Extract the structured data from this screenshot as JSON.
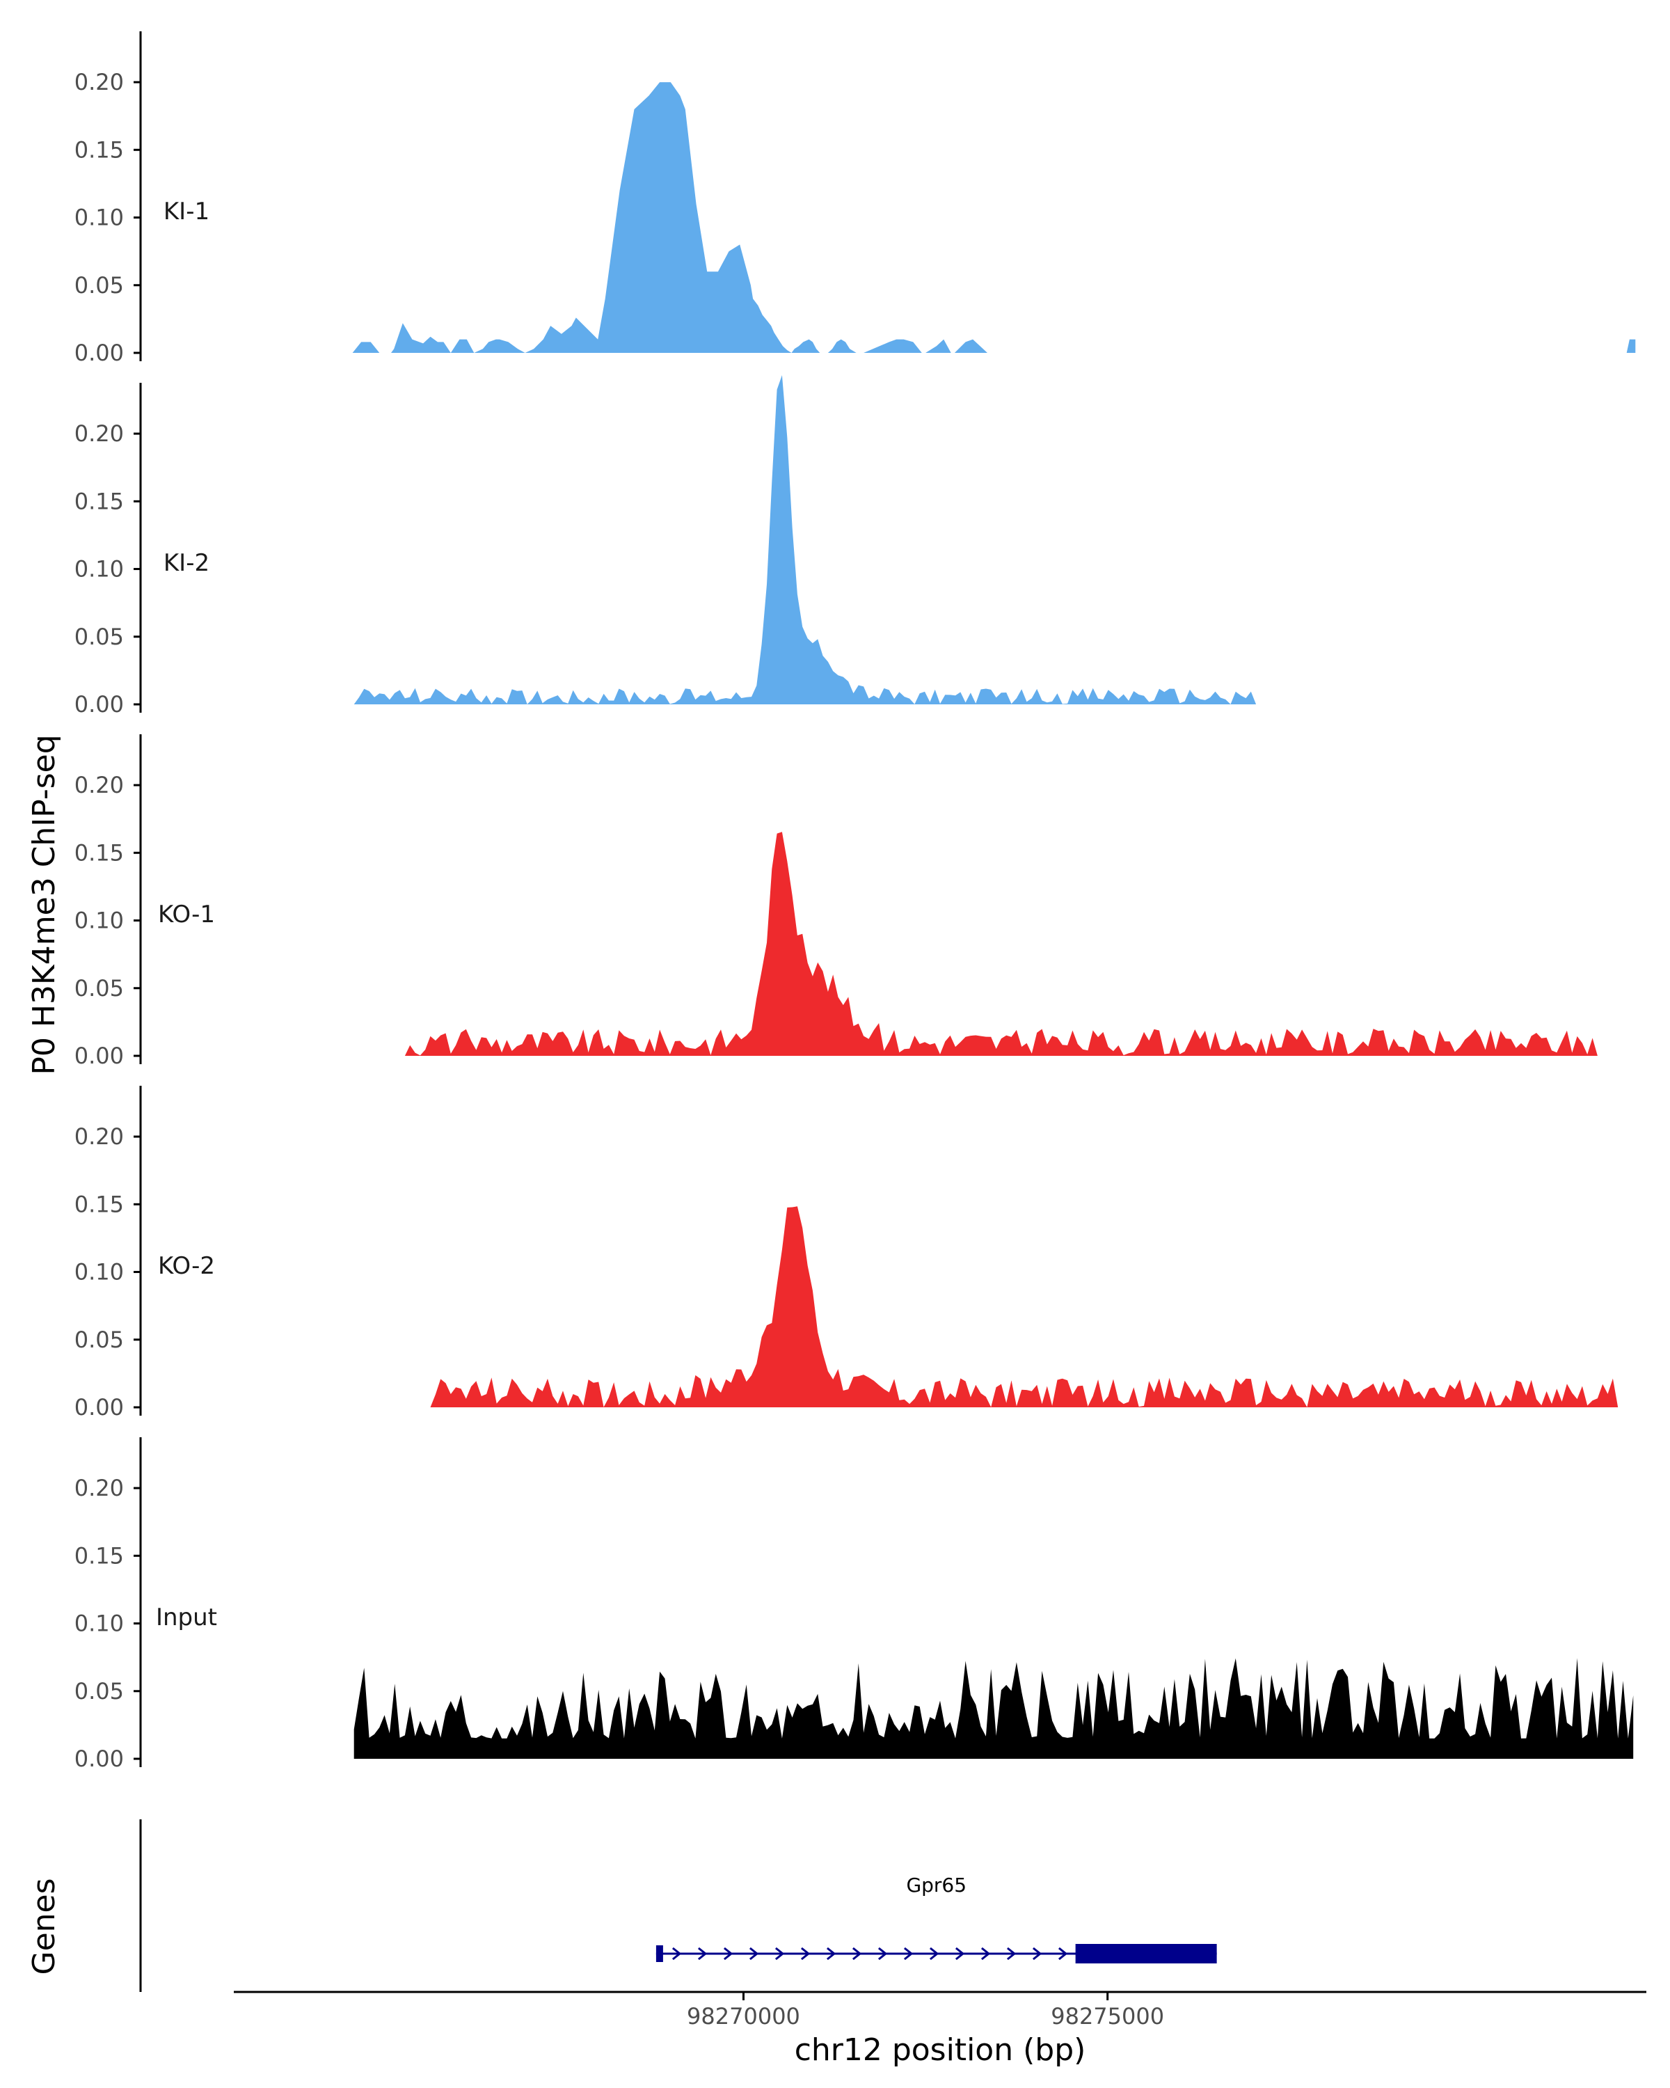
{
  "chart_data": {
    "type": "area",
    "ylabel": "P0 H3K4me3 ChIP-seq",
    "xlabel": "chr12 position (bp)",
    "gene_panel_label": "Genes",
    "xlim": [
      98263000,
      98282400
    ],
    "ylim": [
      0,
      0.235
    ],
    "y_ticks": [
      0.0,
      0.05,
      0.1,
      0.15,
      0.2
    ],
    "y_tick_labels": [
      "0.00",
      "0.05",
      "0.10",
      "0.15",
      "0.20"
    ],
    "x_ticks": [
      98270000,
      98275000
    ],
    "x_tick_labels": [
      "98270000",
      "98275000"
    ],
    "colors": {
      "KI": "#61acec",
      "KO": "#ee2a2d",
      "Input": "#000000",
      "gene": "#00008b",
      "axis": "#000000"
    },
    "series": [
      {
        "name": "KI-1",
        "color": "#61acec",
        "x": [
          98264630,
          98264750,
          98264880,
          98265000,
          98265160,
          98265200,
          98265320,
          98265450,
          98265600,
          98265700,
          98265800,
          98265880,
          98265980,
          98266100,
          98266200,
          98266300,
          98266420,
          98266500,
          98266600,
          98266650,
          98266770,
          98266900,
          98267000,
          98267120,
          98267250,
          98267350,
          98267500,
          98267640,
          98267700,
          98267850,
          98268000,
          98268100,
          98268300,
          98268500,
          98268700,
          98268850,
          98269000,
          98269130,
          98269200,
          98269350,
          98269500,
          98269650,
          98269800,
          98269950,
          98270100,
          98270130,
          98270200,
          98270260,
          98270320,
          98270380,
          98270420,
          98270480,
          98270540,
          98270600,
          98270660,
          98270700,
          98270760,
          98270820,
          98270900,
          98270950,
          98271000,
          98271050,
          98271100,
          98271160,
          98271220,
          98271280,
          98271340,
          98271400,
          98271460,
          98271550,
          98271650,
          98272000,
          98272100,
          98272200,
          98272330,
          98272450,
          98272500,
          98272650,
          98272750,
          98272850,
          98272900,
          98273050,
          98273150,
          98273350,
          98273550,
          98273680,
          98273800,
          98274150,
          98274250,
          98274350,
          98274400,
          98274500,
          98274750,
          98276200,
          98276300,
          98276400,
          98276700,
          98276800,
          98276950,
          98282130,
          98282170,
          98282250
        ],
        "values": [
          0,
          0.008,
          0.008,
          0,
          0,
          0.003,
          0.022,
          0.01,
          0.007,
          0.012,
          0.008,
          0.008,
          0,
          0.01,
          0.01,
          0,
          0.003,
          0.008,
          0.01,
          0.01,
          0.008,
          0.003,
          0,
          0.003,
          0.01,
          0.02,
          0.014,
          0.02,
          0.026,
          0.018,
          0.01,
          0.04,
          0.12,
          0.18,
          0.19,
          0.2,
          0.2,
          0.19,
          0.18,
          0.11,
          0.06,
          0.06,
          0.075,
          0.08,
          0.05,
          0.04,
          0.035,
          0.028,
          0.024,
          0.02,
          0.015,
          0.01,
          0.005,
          0.002,
          0.0,
          0.003,
          0.005,
          0.008,
          0.01,
          0.008,
          0.003,
          0,
          0,
          0,
          0.003,
          0.008,
          0.01,
          0.008,
          0.003,
          0,
          0,
          0.008,
          0.01,
          0.01,
          0.008,
          0,
          0,
          0.005,
          0.01,
          0,
          0,
          0.008,
          0.01,
          0,
          0,
          0,
          0,
          0,
          0,
          0,
          0,
          0,
          0,
          0,
          0,
          0,
          0,
          0,
          0,
          0,
          0.01,
          0.01
        ],
        "values_note": ""
      },
      {
        "name": "KI-2",
        "color": "#61acec",
        "values": [],
        "values_note": ""
      },
      {
        "name": "KO-1",
        "color": "#ee2a2d",
        "values": [],
        "values_note": ""
      },
      {
        "name": "KO-2",
        "color": "#ee2a2d",
        "values": [],
        "values_note": ""
      },
      {
        "name": "Input",
        "color": "#000000",
        "values": [],
        "values_note": ""
      }
    ],
    "gene": {
      "name": "Gpr65",
      "start": 98268800,
      "end": 98276500,
      "thick_start": 98274560,
      "thick_end": 98276500,
      "strand": "+"
    }
  }
}
